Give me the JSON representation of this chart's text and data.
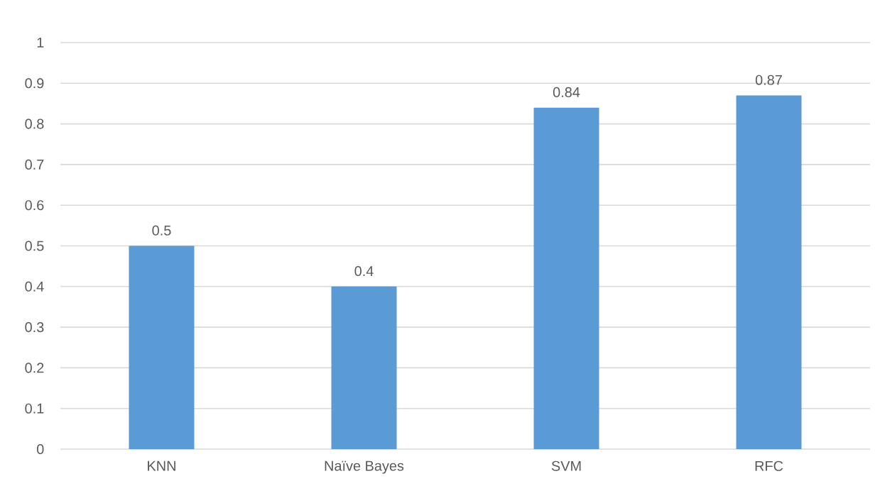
{
  "chart_data": {
    "type": "bar",
    "categories": [
      "KNN",
      "Naïve Bayes",
      "SVM",
      "RFC"
    ],
    "values": [
      0.5,
      0.4,
      0.84,
      0.87
    ],
    "color": "#5b9bd5",
    "ylim": [
      0,
      1
    ],
    "yticks": [
      0,
      0.1,
      0.2,
      0.3,
      0.4,
      0.5,
      0.6,
      0.7,
      0.8,
      0.9,
      1
    ],
    "grid": "y",
    "data_labels": true
  }
}
